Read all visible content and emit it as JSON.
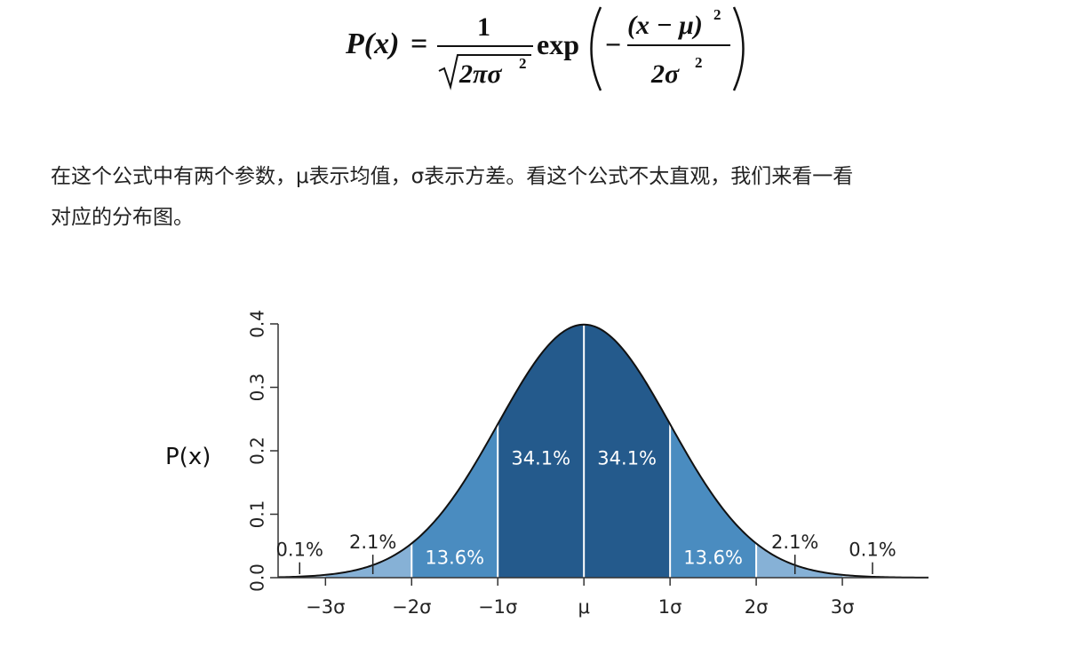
{
  "formula": {
    "lhs": "P(x)",
    "equals": "=",
    "numerator_one": "1",
    "sqrt_body": "2πσ",
    "sqrt_exponent": "2",
    "exp": "exp",
    "minus": "−",
    "inner_numerator": "(x − μ)",
    "inner_numerator_exponent": "2",
    "inner_denominator": "2σ",
    "inner_denominator_exponent": "2"
  },
  "paragraph": {
    "line1": "在这个公式中有两个参数，μ表示均值，σ表示方差。看这个公式不太直观，我们来看一看",
    "line2": "对应的分布图。"
  },
  "chart_data": {
    "type": "area",
    "xlabel": "",
    "ylabel": "P(x)",
    "ylim": [
      0,
      0.4
    ],
    "xlim": [
      -3.55,
      4.0
    ],
    "y_ticks": [
      "0.0",
      "0.1",
      "0.2",
      "0.3",
      "0.4"
    ],
    "y_tick_values": [
      0,
      0.1,
      0.2,
      0.3,
      0.4
    ],
    "x_ticks": [
      "−3σ",
      "−2σ",
      "−1σ",
      "μ",
      "1σ",
      "2σ",
      "3σ"
    ],
    "x_tick_values": [
      -3,
      -2,
      -1,
      0,
      1,
      2,
      3
    ],
    "curve": "standard normal density",
    "regions": [
      {
        "from": -1,
        "to": 0,
        "label": "34.1%",
        "color": "#245a8c"
      },
      {
        "from": 0,
        "to": 1,
        "label": "34.1%",
        "color": "#245a8c"
      },
      {
        "from": -2,
        "to": -1,
        "label": "13.6%",
        "color": "#4a8cc0"
      },
      {
        "from": 1,
        "to": 2,
        "label": "13.6%",
        "color": "#4a8cc0"
      },
      {
        "from": -3,
        "to": -2,
        "label": "2.1%",
        "color": "#86b1d6"
      },
      {
        "from": 2,
        "to": 3,
        "label": "2.1%",
        "color": "#86b1d6"
      },
      {
        "from": -3.55,
        "to": -3,
        "label": "0.1%",
        "color": "#bcd5ea"
      },
      {
        "from": 3,
        "to": 4.0,
        "label": "0.1%",
        "color": "#bcd5ea"
      }
    ],
    "label_positions": [
      {
        "label": "0.1%",
        "x": -3.3,
        "y": 0.034,
        "pointer_x": -3.3
      },
      {
        "label": "2.1%",
        "x": -2.45,
        "y": 0.046,
        "pointer_x": -2.45
      },
      {
        "label": "13.6%",
        "x": -1.5,
        "y": 0.022
      },
      {
        "label": "34.1%",
        "x": -0.5,
        "y": 0.178
      },
      {
        "label": "34.1%",
        "x": 0.5,
        "y": 0.178
      },
      {
        "label": "13.6%",
        "x": 1.5,
        "y": 0.022
      },
      {
        "label": "2.1%",
        "x": 2.45,
        "y": 0.046,
        "pointer_x": 2.45
      },
      {
        "label": "0.1%",
        "x": 3.35,
        "y": 0.034,
        "pointer_x": 3.35
      }
    ],
    "colors": {
      "curve": "#111111",
      "axis": "#333333",
      "label_dark": "#222222",
      "label_light": "#ffffff",
      "divider": "#ffffff"
    }
  }
}
